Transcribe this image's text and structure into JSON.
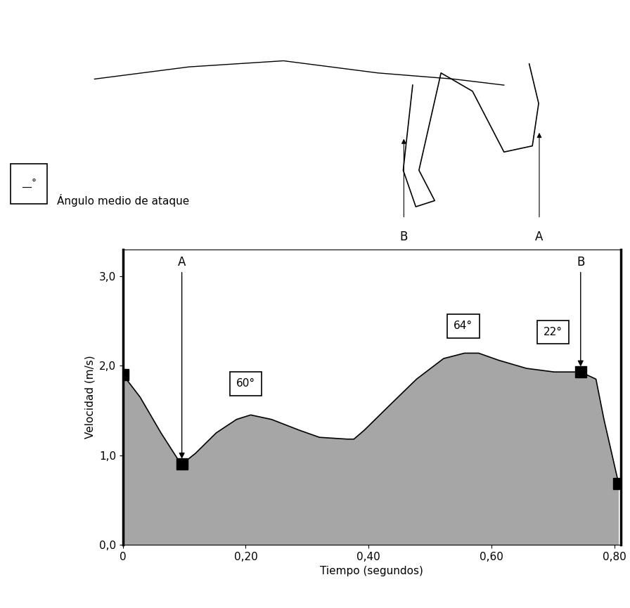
{
  "chart_data": {
    "type": "area",
    "x_label": "Tiempo (segundos)",
    "y_label": "Velocidad (m/s)",
    "color": "#a6a6a6",
    "x": [
      0.0,
      0.028,
      0.062,
      0.09,
      0.096,
      0.118,
      0.152,
      0.185,
      0.208,
      0.242,
      0.287,
      0.32,
      0.365,
      0.376,
      0.393,
      0.433,
      0.478,
      0.522,
      0.556,
      0.579,
      0.612,
      0.657,
      0.702,
      0.745,
      0.77,
      0.783,
      0.798,
      0.807
    ],
    "values": [
      1.9,
      1.65,
      1.25,
      0.95,
      0.9,
      1.02,
      1.25,
      1.4,
      1.45,
      1.4,
      1.28,
      1.2,
      1.18,
      1.18,
      1.28,
      1.55,
      1.85,
      2.08,
      2.14,
      2.14,
      2.06,
      1.97,
      1.93,
      1.93,
      1.85,
      1.4,
      0.95,
      0.68
    ],
    "marked_points": {
      "x": [
        0.0,
        0.096,
        0.745,
        0.807
      ],
      "values": [
        1.9,
        0.9,
        1.93,
        0.68
      ],
      "marker": "square"
    },
    "arrows": [
      {
        "label": "A",
        "x": 0.096,
        "value": 0.9
      },
      {
        "label": "B",
        "x": 0.745,
        "value": 1.93
      }
    ],
    "angle_labels": [
      "60°",
      "64°",
      "22°"
    ],
    "angle_key": {
      "symbol": "__°",
      "text": "Ángulo medio de ataque"
    },
    "diagram_labels": [
      "B",
      "A"
    ],
    "xlim": [
      0,
      0.81
    ],
    "ylim": [
      0,
      3.3
    ],
    "xticks": [
      0,
      {
        "value": 0.2,
        "label": "0,20"
      },
      {
        "value": 0.4,
        "label": "0,40"
      },
      {
        "value": 0.6,
        "label": "0,60"
      },
      {
        "value": 0.8,
        "label": "0,80"
      }
    ],
    "yticks": [
      {
        "value": 0,
        "label": "0,0"
      },
      {
        "value": 1,
        "label": "1,0"
      },
      {
        "value": 2,
        "label": "2,0"
      },
      {
        "value": 3,
        "label": "3,0"
      }
    ],
    "grid": false
  }
}
